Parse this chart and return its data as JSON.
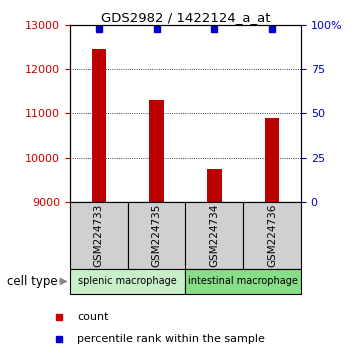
{
  "title": "GDS2982 / 1422124_a_at",
  "samples": [
    "GSM224733",
    "GSM224735",
    "GSM224734",
    "GSM224736"
  ],
  "counts": [
    12450,
    11300,
    9750,
    10900
  ],
  "percentile_ranks": [
    99,
    99,
    99,
    99
  ],
  "ylim_left": [
    9000,
    13000
  ],
  "ylim_right": [
    0,
    100
  ],
  "yticks_left": [
    9000,
    10000,
    11000,
    12000,
    13000
  ],
  "yticks_right": [
    0,
    25,
    50,
    75,
    100
  ],
  "bar_color": "#bb0000",
  "percentile_color": "#0000cc",
  "left_tick_color": "#cc0000",
  "right_tick_color": "#0000cc",
  "group1_label": "splenic macrophage",
  "group2_label": "intestinal macrophage",
  "group1_color": "#c8f0c8",
  "group2_color": "#88dd88",
  "sample_box_color": "#d0d0d0",
  "cell_type_label": "cell type",
  "legend_count_color": "#cc0000",
  "legend_pct_color": "#0000cc",
  "bar_width": 0.25
}
